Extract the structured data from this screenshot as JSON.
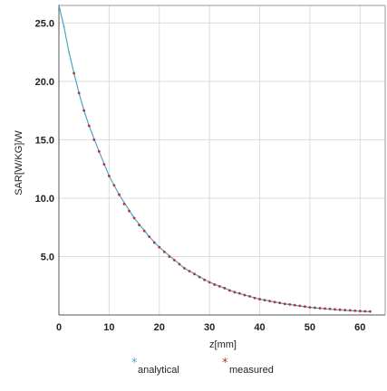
{
  "chart_data": {
    "type": "line",
    "title": "",
    "xlabel": "z[mm]",
    "ylabel": "SAR[W/KG]/W",
    "xlim": [
      0,
      65
    ],
    "ylim": [
      0,
      26.5
    ],
    "x_ticks": [
      0,
      10,
      20,
      30,
      40,
      50,
      60
    ],
    "x_tick_labels": [
      "0",
      "10",
      "20",
      "30",
      "40",
      "50",
      "60"
    ],
    "y_ticks": [
      5,
      10,
      15,
      20,
      25
    ],
    "y_tick_labels": [
      "5.0",
      "10.0",
      "15.0",
      "20.0",
      "25.0"
    ],
    "grid": true,
    "legend_position": "bottom",
    "series": [
      {
        "name": "analytical",
        "color": "#4fa3c7",
        "marker": "point",
        "x": [
          0,
          1,
          2,
          3,
          4,
          5,
          6,
          8,
          10,
          12,
          15,
          18,
          20,
          25,
          30,
          35,
          40,
          45,
          50,
          55,
          60,
          62
        ],
        "y": [
          26.5,
          24.7,
          22.5,
          20.7,
          19.0,
          17.5,
          16.2,
          14.0,
          11.9,
          10.3,
          8.3,
          6.7,
          5.8,
          4.0,
          2.8,
          1.95,
          1.35,
          0.95,
          0.65,
          0.45,
          0.32,
          0.28
        ]
      },
      {
        "name": "measured",
        "color": "#b5342e",
        "marker": "dot",
        "x": [
          3,
          4,
          5,
          6,
          7,
          8,
          9,
          10,
          11,
          12,
          13,
          14,
          15,
          16,
          17,
          18,
          19,
          20,
          21,
          22,
          23,
          24,
          25,
          26,
          27,
          28,
          29,
          30,
          31,
          32,
          33,
          34,
          35,
          36,
          37,
          38,
          39,
          40,
          41,
          42,
          43,
          44,
          45,
          46,
          47,
          48,
          49,
          50,
          51,
          52,
          53,
          54,
          55,
          56,
          57,
          58,
          59,
          60,
          61,
          62
        ],
        "y": [
          20.7,
          19.0,
          17.5,
          16.2,
          15.0,
          14.0,
          12.9,
          11.9,
          11.1,
          10.3,
          9.5,
          8.9,
          8.3,
          7.7,
          7.2,
          6.7,
          6.2,
          5.8,
          5.4,
          5.0,
          4.7,
          4.35,
          4.0,
          3.75,
          3.5,
          3.25,
          3.0,
          2.8,
          2.6,
          2.45,
          2.3,
          2.1,
          1.95,
          1.85,
          1.7,
          1.6,
          1.45,
          1.35,
          1.27,
          1.19,
          1.1,
          1.03,
          0.95,
          0.9,
          0.84,
          0.78,
          0.72,
          0.65,
          0.62,
          0.58,
          0.55,
          0.52,
          0.48,
          0.45,
          0.42,
          0.4,
          0.37,
          0.34,
          0.32,
          0.3
        ]
      }
    ]
  },
  "legend": {
    "analytical_label": "analytical",
    "measured_label": "measured"
  }
}
